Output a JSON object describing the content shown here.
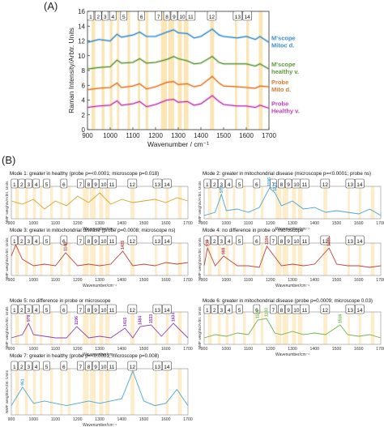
{
  "panel_labels": {
    "a": "(A)",
    "b": "(B)"
  },
  "band_numbers": [
    "1",
    "2",
    "3",
    "4",
    "5",
    "6",
    "7",
    "8",
    "9",
    "10",
    "11",
    "12",
    "13",
    "14"
  ],
  "colors": {
    "mitoc_scope": "#3a8fd0",
    "healthy_scope": "#5e9a3a",
    "mito_probe": "#e07a30",
    "healthy_probe": "#c23fb5",
    "band": "#fde6b5",
    "mode_healthy": "#d6a22c",
    "mode_mito": "#4aa4d8",
    "mode_red": "#c2403a",
    "mode_purple": "#8a3fb0",
    "mode_green": "#6cb44a"
  },
  "chart_data": [
    {
      "type": "line",
      "panel": "(A)",
      "xlabel": "Wavenumber / cm⁻¹",
      "ylabel": "Raman Intensity/Arbtr. Units",
      "xlim": [
        900,
        1700
      ],
      "ylim": [
        0,
        16
      ],
      "x_ticks": [
        "900",
        "1000",
        "1100",
        "1200",
        "1300",
        "1400",
        "1500",
        "1600",
        "1700"
      ],
      "y_ticks": [
        "0",
        "2",
        "4",
        "6",
        "8",
        "10",
        "12",
        "14",
        "16"
      ],
      "band_regions": [
        [
          918,
          934
        ],
        [
          962,
          975
        ],
        [
          998,
          1010
        ],
        [
          1030,
          1040
        ],
        [
          1076,
          1088
        ],
        [
          1122,
          1132
        ],
        [
          1156,
          1168
        ],
        [
          1224,
          1250
        ],
        [
          1256,
          1282
        ],
        [
          1298,
          1316
        ],
        [
          1325,
          1345
        ],
        [
          1440,
          1458
        ],
        [
          1550,
          1560
        ],
        [
          1600,
          1612
        ],
        [
          1655,
          1672
        ]
      ],
      "series": [
        {
          "name": "M'scope Mitoc d.",
          "color_key": "mitoc_scope",
          "x": [
            900,
            950,
            1000,
            1030,
            1050,
            1100,
            1130,
            1160,
            1200,
            1250,
            1280,
            1300,
            1340,
            1370,
            1400,
            1450,
            1480,
            1500,
            1560,
            1600,
            1640,
            1660,
            1700
          ],
          "y": [
            11.8,
            12.2,
            12.0,
            12.9,
            12.5,
            12.8,
            13.2,
            12.6,
            12.6,
            13.2,
            13.5,
            13.1,
            13.0,
            12.4,
            12.6,
            13.6,
            12.8,
            12.6,
            12.4,
            12.6,
            12.2,
            12.6,
            11.8
          ]
        },
        {
          "name": "M'scope healthy v.",
          "color_key": "healthy_scope",
          "x": [
            900,
            950,
            1000,
            1030,
            1050,
            1100,
            1130,
            1160,
            1200,
            1250,
            1280,
            1300,
            1340,
            1370,
            1400,
            1450,
            1480,
            1500,
            1560,
            1600,
            1640,
            1660,
            1700
          ],
          "y": [
            8.2,
            8.4,
            8.5,
            9.4,
            9.0,
            9.1,
            9.6,
            9.0,
            9.1,
            9.5,
            9.9,
            9.6,
            9.3,
            8.9,
            9.0,
            9.9,
            9.1,
            8.9,
            8.9,
            8.9,
            8.6,
            8.9,
            8.2
          ]
        },
        {
          "name": "Probe Mito d.",
          "color_key": "mito_probe",
          "x": [
            900,
            950,
            1000,
            1030,
            1050,
            1100,
            1130,
            1160,
            1200,
            1250,
            1280,
            1300,
            1340,
            1370,
            1400,
            1450,
            1480,
            1500,
            1560,
            1600,
            1640,
            1660,
            1700
          ],
          "y": [
            5.4,
            5.6,
            5.7,
            6.3,
            5.7,
            5.9,
            6.2,
            5.5,
            5.8,
            6.4,
            6.5,
            6.1,
            6.2,
            5.8,
            6.0,
            7.2,
            6.3,
            5.9,
            5.8,
            5.7,
            5.6,
            5.9,
            5.8
          ]
        },
        {
          "name": "Probe Healthy v.",
          "color_key": "healthy_probe",
          "x": [
            900,
            950,
            1000,
            1030,
            1050,
            1100,
            1130,
            1160,
            1200,
            1250,
            1280,
            1300,
            1340,
            1370,
            1400,
            1450,
            1480,
            1500,
            1560,
            1600,
            1640,
            1660,
            1700
          ],
          "y": [
            3.0,
            3.2,
            3.3,
            3.9,
            3.3,
            3.5,
            3.8,
            3.1,
            3.4,
            4.0,
            4.1,
            3.7,
            3.8,
            3.3,
            3.5,
            4.6,
            3.8,
            3.4,
            3.2,
            3.2,
            3.0,
            3.3,
            2.9
          ]
        }
      ]
    },
    {
      "type": "line",
      "panel": "(B)",
      "title": "Mode 1: greater in healthy (probe p=<0.0001; microscope p=0.018)",
      "ylabel": "NMF weights/Arbtr. Units",
      "xlabel": "Wavenumber/cm⁻¹",
      "xlim": [
        900,
        1700
      ],
      "x_ticks": [
        "900",
        "1000",
        "1100",
        "1200",
        "1300",
        "1400",
        "1500",
        "1600",
        "1700"
      ],
      "color_key": "mode_healthy",
      "peak_labels": [],
      "x": [
        900,
        950,
        1000,
        1050,
        1100,
        1150,
        1200,
        1250,
        1300,
        1350,
        1400,
        1450,
        1500,
        1550,
        1600,
        1650,
        1700
      ],
      "y": [
        0.55,
        0.45,
        0.6,
        0.3,
        0.55,
        0.4,
        0.7,
        0.5,
        0.8,
        0.45,
        0.6,
        0.5,
        0.55,
        0.6,
        0.5,
        0.65,
        0.55
      ]
    },
    {
      "type": "line",
      "panel": "(B)",
      "title": "Mode 2: greater in mitochondrial disease (microscope p=<0.0001; probe ns)",
      "ylabel": "NMF weights/Arbtr. Units",
      "xlabel": "Wavenumber/cm⁻¹",
      "xlim": [
        900,
        1700
      ],
      "x_ticks": [
        "900",
        "1000",
        "1100",
        "1200",
        "1300",
        "1400",
        "1500",
        "1600",
        "1700"
      ],
      "color_key": "mode_mito",
      "peak_labels": [
        {
          "x": 978,
          "text": "978"
        },
        {
          "x": 1196,
          "text": "1196"
        },
        {
          "x": 1221,
          "text": "1221"
        }
      ],
      "x": [
        900,
        950,
        978,
        1000,
        1050,
        1100,
        1150,
        1196,
        1221,
        1250,
        1300,
        1350,
        1400,
        1450,
        1500,
        1550,
        1600,
        1650,
        1700
      ],
      "y": [
        0.1,
        0.2,
        0.75,
        0.25,
        0.3,
        0.2,
        0.35,
        0.95,
        0.8,
        0.4,
        0.55,
        0.3,
        0.35,
        0.2,
        0.25,
        0.2,
        0.15,
        0.3,
        0.1
      ]
    },
    {
      "type": "line",
      "panel": "(B)",
      "title": "Mode 3: greater in mitochondrial disease (probe p=0.0008; microscope ns)",
      "ylabel": "NMF weights/Arbtr. Units",
      "xlabel": "Wavenumber/cm⁻¹",
      "xlim": [
        900,
        1700
      ],
      "x_ticks": [
        "900",
        "1000",
        "1100",
        "1200",
        "1300",
        "1400",
        "1500",
        "1600",
        "1700"
      ],
      "color_key": "mode_red",
      "peak_labels": [
        {
          "x": 1146,
          "text": "1146"
        },
        {
          "x": 1405,
          "text": "1405"
        }
      ],
      "x": [
        900,
        920,
        950,
        1000,
        1050,
        1100,
        1146,
        1200,
        1250,
        1300,
        1350,
        1405,
        1450,
        1500,
        1550,
        1600,
        1650,
        1700
      ],
      "y": [
        0.6,
        0.95,
        0.5,
        0.3,
        0.35,
        0.3,
        0.7,
        0.3,
        0.35,
        0.3,
        0.35,
        0.75,
        0.3,
        0.35,
        0.3,
        0.4,
        0.35,
        0.4
      ]
    },
    {
      "type": "line",
      "panel": "(B)",
      "title": "Mode 4: no difference in probe or microscope",
      "ylabel": "NMF weights/Arbtr. Units",
      "xlabel": "Wavenumber/cm⁻¹",
      "xlim": [
        900,
        1700
      ],
      "x_ticks": [
        "900",
        "1000",
        "1100",
        "1200",
        "1300",
        "1400",
        "1500",
        "1600",
        "1700"
      ],
      "color_key": "mode_red",
      "peak_labels": [
        {
          "x": 915,
          "text": "915"
        },
        {
          "x": 988,
          "text": "988"
        },
        {
          "x": 1184,
          "text": "1184"
        },
        {
          "x": 1466,
          "text": "1466"
        }
      ],
      "x": [
        900,
        915,
        950,
        988,
        1050,
        1100,
        1150,
        1184,
        1250,
        1300,
        1350,
        1400,
        1466,
        1500,
        1550,
        1600,
        1650,
        1700
      ],
      "y": [
        0.3,
        0.85,
        0.3,
        0.6,
        0.3,
        0.3,
        0.25,
        0.9,
        0.3,
        0.35,
        0.3,
        0.35,
        0.85,
        0.35,
        0.3,
        0.3,
        0.25,
        0.3
      ]
    },
    {
      "type": "line",
      "panel": "(B)",
      "title": "Mode 5: no difference in probe or microscope",
      "ylabel": "NMF weights/Arbtr. Units",
      "xlabel": "Wavenumber/cm⁻¹",
      "xlim": [
        900,
        1700
      ],
      "x_ticks": [
        "900",
        "1000",
        "1100",
        "1200",
        "1300",
        "1400",
        "1500",
        "1600",
        "1700"
      ],
      "color_key": "mode_purple",
      "peak_labels": [
        {
          "x": 978,
          "text": "978"
        },
        {
          "x": 1196,
          "text": "1196"
        },
        {
          "x": 1415,
          "text": "1415"
        },
        {
          "x": 1484,
          "text": "1484"
        },
        {
          "x": 1533,
          "text": "1533"
        },
        {
          "x": 1634,
          "text": "1634"
        }
      ],
      "x": [
        900,
        950,
        978,
        1000,
        1050,
        1100,
        1150,
        1196,
        1250,
        1300,
        1350,
        1415,
        1450,
        1484,
        1533,
        1580,
        1634,
        1700
      ],
      "y": [
        0.2,
        0.3,
        0.65,
        0.3,
        0.25,
        0.2,
        0.2,
        0.55,
        0.2,
        0.25,
        0.2,
        0.5,
        0.2,
        0.55,
        0.6,
        0.25,
        0.65,
        0.2
      ]
    },
    {
      "type": "line",
      "panel": "(B)",
      "title": "Mode 6: greater in mitochondrial disease (probe p=0.0009; microscope 0.03)",
      "ylabel": "NMF weights/Arbtr. Units",
      "xlabel": "Wavenumber/cm⁻¹",
      "xlim": [
        900,
        1700
      ],
      "x_ticks": [
        "900",
        "1000",
        "1100",
        "1200",
        "1300",
        "1400",
        "1500",
        "1600",
        "1700"
      ],
      "color_key": "mode_green",
      "peak_labels": [
        {
          "x": 1143,
          "text": "1143"
        },
        {
          "x": 1183,
          "text": "1183"
        },
        {
          "x": 1516,
          "text": "1516"
        }
      ],
      "x": [
        900,
        950,
        1000,
        1050,
        1100,
        1143,
        1183,
        1220,
        1250,
        1300,
        1350,
        1400,
        1450,
        1516,
        1550,
        1600,
        1650,
        1700
      ],
      "y": [
        0.2,
        0.3,
        0.25,
        0.35,
        0.3,
        0.75,
        0.8,
        0.35,
        0.3,
        0.4,
        0.3,
        0.35,
        0.3,
        0.6,
        0.3,
        0.25,
        0.3,
        0.2
      ]
    },
    {
      "type": "line",
      "panel": "(B)",
      "title": "Mode 7: greater in healthy (probe p=<0.0001; microscope p=0.008)",
      "ylabel": "NMF weights/Arbtr. Units",
      "xlabel": "Wavenumber/cm⁻¹",
      "xlim": [
        900,
        1700
      ],
      "x_ticks": [
        "900",
        "1000",
        "1100",
        "1200",
        "1300",
        "1400",
        "1500",
        "1600",
        "1700"
      ],
      "color_key": "mode_mito",
      "peak_labels": [
        {
          "x": 951,
          "text": "951"
        }
      ],
      "x": [
        900,
        951,
        1000,
        1050,
        1100,
        1150,
        1200,
        1250,
        1300,
        1350,
        1400,
        1450,
        1500,
        1550,
        1600,
        1650,
        1700
      ],
      "y": [
        0.2,
        0.6,
        0.25,
        0.3,
        0.25,
        0.2,
        0.25,
        0.3,
        0.25,
        0.3,
        0.35,
        0.95,
        0.3,
        0.2,
        0.25,
        0.55,
        0.2
      ]
    }
  ]
}
